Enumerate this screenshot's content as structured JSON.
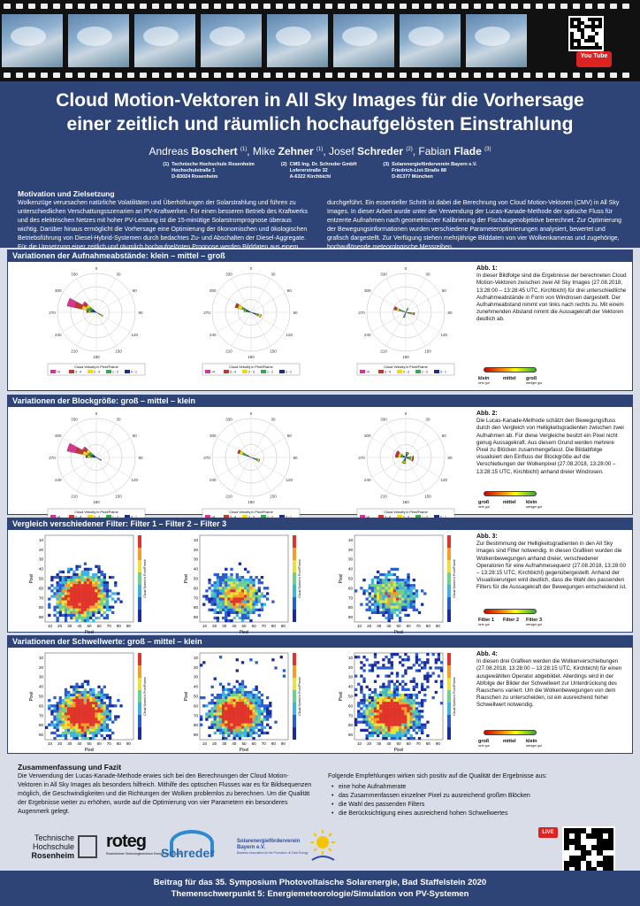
{
  "header": {
    "title_line1": "Cloud Motion-Vektoren in All Sky Images für die Vorhersage",
    "title_line2": "einer zeitlich und räumlich hochaufgelösten Einstrahlung",
    "authors": [
      {
        "first": "Andreas",
        "last": "Boschert",
        "sup": "(1)"
      },
      {
        "first": "Mike",
        "last": "Zehner",
        "sup": "(1)"
      },
      {
        "first": "Josef",
        "last": "Schreder",
        "sup": "(2)"
      },
      {
        "first": "Fabian",
        "last": "Flade",
        "sup": "(3)"
      }
    ],
    "affiliations": [
      {
        "num": "(1)",
        "lines": [
          "Technische Hochschule Rosenheim",
          "Hochschulstraße 1",
          "D-83024 Rosenheim"
        ]
      },
      {
        "num": "(2)",
        "lines": [
          "CMS Ing. Dr. Schreder GmbH",
          "Loferer­straße 32",
          "A-6322 Kirchbichl"
        ]
      },
      {
        "num": "(3)",
        "lines": [
          "Solarenergieförderverein Bayern e.V.",
          "Friedrich-List-Straße 88",
          "D-81377 München"
        ]
      }
    ]
  },
  "motivation": {
    "heading": "Motivation und Zielsetzung",
    "col1": "Wolkenzüge verursachen natürliche Volatilitäten und Überhöhungen der Solarstrahlung und führen zu unterschiedlichen Verschattungsszenarien an PV-Kraftwerken. Für einen besseren Betrieb des Kraftwerks und des elektrischen Netzes mit hoher PV-Leistung ist die 15-minütige Solarstromprognose überaus wichtig. Darüber hinaus ermöglicht die Vorhersage eine Optimierung der ökonomischen und ökologischen Betriebsführung von Diesel-Hybrid-Systemen durch bedachtes Zu- und Abschalten der Diesel-Aggregate. Für die Umsetzung einer zeitlich und räumlich hochaufgelösten Prognose werden Bilddaten aus einem Messnetz von All Sky Imager ausgewertet und mehrere Berechnungsschritte",
    "col2": "durchgeführt. Ein essentieller Schritt ist dabei die Berechnung von Cloud Motion-Vektoren (CMV) in All Sky Images. In dieser Arbeit wurde unter der Verwendung der Lucas-Kanade-Methode der optische Fluss für entzerrte Aufnahmen nach geometrischer Kalibrierung der Fischaugenobjektive berechnet. Zur Optimierung der Bewegungsinformationen wurden verschiedene Parameteroptimierungen analysiert, bewertet und grafisch dargestellt. Zur Verfügung stehen mehrjährige Bilddaten von vier Wolkenkameras und zugehörige, hochauflösende meteorologische Messreihen."
  },
  "sections": [
    {
      "title": "Variationen der Aufnahmeabstände: klein – mittel – groß",
      "caption_label": "Abb. 1:",
      "caption": "In dieser Bildfolge sind die Ergebnisse der berechneten Cloud Motion-Vektoren zwischen zwei All Sky Images (27.08.2018, 13:28:00 – 13:28:45 UTC, Kirchbichl) für drei unterschiedliche Aufnahmeabstände in Form von Windrosen dargestellt. Der Aufnahmeabstand nimmt von links nach rechts zu. Mit einem zunehmenden Abstand nimmt die Aussagekraft der Vektoren deutlich ab.",
      "indicator": [
        {
          "t": "klein",
          "s": "sehr gut"
        },
        {
          "t": "mittel",
          "s": ""
        },
        {
          "t": "groß",
          "s": "weniger gut"
        }
      ]
    },
    {
      "title": "Variationen der Blockgröße: groß – mittel – klein",
      "caption_label": "Abb. 2:",
      "caption": "Die Lucas-Kanade-Methode schätzt den Bewegungsfluss durch den Vergleich von Helligkeitsgradienten zwischen zwei Aufnahmen ab. Für diese Vergleiche besitzt ein Pixel nicht genug Aussagekraft. Aus diesem Grund werden mehrere Pixel zu Blöcken zusammengefasst. Die Bildabfolge visualisiert den Einfluss der Blockgröße auf die Verschiebungen der Wolkenpixel (27.08.2018, 13:28:00 – 13:28:15 UTC, Kirchbichl) anhand dreier Windrosen.",
      "indicator": [
        {
          "t": "groß",
          "s": "sehr gut"
        },
        {
          "t": "mittel",
          "s": ""
        },
        {
          "t": "klein",
          "s": "weniger gut"
        }
      ]
    },
    {
      "title": "Vergleich verschiedener Filter: Filter 1 – Filter 2 – Filter 3",
      "caption_label": "Abb. 3:",
      "caption": "Zur Bestimmung der Helligkeitsgradienten in den All Sky Images sind Filter notwendig. In diesen Grafiken wurden die Wolkenbewegungen anhand dreier, verschiedener Operatoren für eine Aufnahmesequenz (27.08.2018, 13:28:00 – 13:28:15 UTC, Kirchbichl) gegenübergestellt. Anhand der Visualisierungen wird deutlich, dass die Wahl des passenden Filters für die Aussagekraft der Bewegungen entscheidend ist.",
      "indicator": [
        {
          "t": "Filter 1",
          "s": "sehr gut"
        },
        {
          "t": "Filter 2",
          "s": ""
        },
        {
          "t": "Filter 3",
          "s": "weniger gut"
        }
      ]
    },
    {
      "title": "Variationen der Schwellwerte: groß – mittel – klein",
      "caption_label": "Abb. 4:",
      "caption": "In diesen drei Grafiken werden die Wolkenverschiebungen (27.08.2018, 13:28:00 – 13:28:15 UTC, Kirchbichl) für einen ausgewählten Operator abgebildet. Allerdings wird in der Abfolge der Bilder der Schwellwert zur Unterdrückung des Rauschens variiert. Um die Wolkenbewegungen von dem Rauschen zu unterscheiden, ist ein ausreichend hoher Schwellwert notwendig.",
      "indicator": [
        {
          "t": "groß",
          "s": "sehr gut"
        },
        {
          "t": "mittel",
          "s": ""
        },
        {
          "t": "klein",
          "s": "weniger gut"
        }
      ]
    }
  ],
  "windrose": {
    "legend_title": "Cloud Velocity in Pixel/Frame",
    "legend_bins": [
      ">4",
      "3 - 4",
      "2 - 3",
      "1 - 2",
      "0 - 1"
    ],
    "angle_labels": [
      "0",
      "30",
      "60",
      "90",
      "120",
      "150",
      "180",
      "210",
      "240",
      "270",
      "300",
      "330"
    ]
  },
  "heatmap": {
    "xlabel": "Pixel",
    "ylabel": "Pixel",
    "cbar_label": "Cloud Speed in Pixel/Frame",
    "yticks": [
      "10",
      "20",
      "30",
      "40",
      "50",
      "60",
      "70",
      "80",
      "90"
    ],
    "xticks": [
      "10",
      "20",
      "30",
      "40",
      "50",
      "60",
      "70",
      "80",
      "90"
    ]
  },
  "summary": {
    "heading": "Zusammenfassung und Fazit",
    "col1": "Die Verwendung der Lucas-Kanade-Methode erwies sich bei den Berechnungen der Cloud Motion-Vektoren in All Sky Images als besonders hilfreich. Mithilfe des optischen Flusses war es für Bildsequenzen möglich, die Geschwindigkeiten und die Richtungen der Wolken problemlos zu berechnen. Um die Qualität der Ergebnisse weiter zu erhöhen, wurde auf die Optimierung von vier Parametern ein besonderes Augenmerk gelegt.",
    "col2_intro": "Folgende Empfehlungen wirken sich positiv auf die Qualität der Ergebnisse aus:",
    "bullets": [
      "eine hohe Aufnahmerate",
      "das Zusammenfassen einzelner Pixel zu ausreichend großen Blöcken",
      "die Wahl des passenden Filters",
      "die Berücksichtigung eines ausreichend hohen Schwellwertes"
    ]
  },
  "logos": {
    "th_line1": "Technische",
    "th_line2": "Hochschule",
    "th_line3": "Rosenheim",
    "roteg": "roteg",
    "roteg_sub": "Rosenheimer Technologiezentrum Energie & Gebäude",
    "schreder": "Schreder",
    "sev_line1": "Solarenergieförderverein",
    "sev_line2": "Bayern e.V.",
    "sev_sub": "Bavarian Association for the Promotion of Solar Energy"
  },
  "badges": {
    "youtube": "You Tube",
    "live": "LIVE"
  },
  "footer": {
    "line1": "Beitrag für das 35. Symposium Photovoltaische Solarenergie, Bad Staffelstein 2020",
    "line2": "Themenschwerpunkt 5: Energiemeteorologie/Simulation von PV-Systemen"
  }
}
